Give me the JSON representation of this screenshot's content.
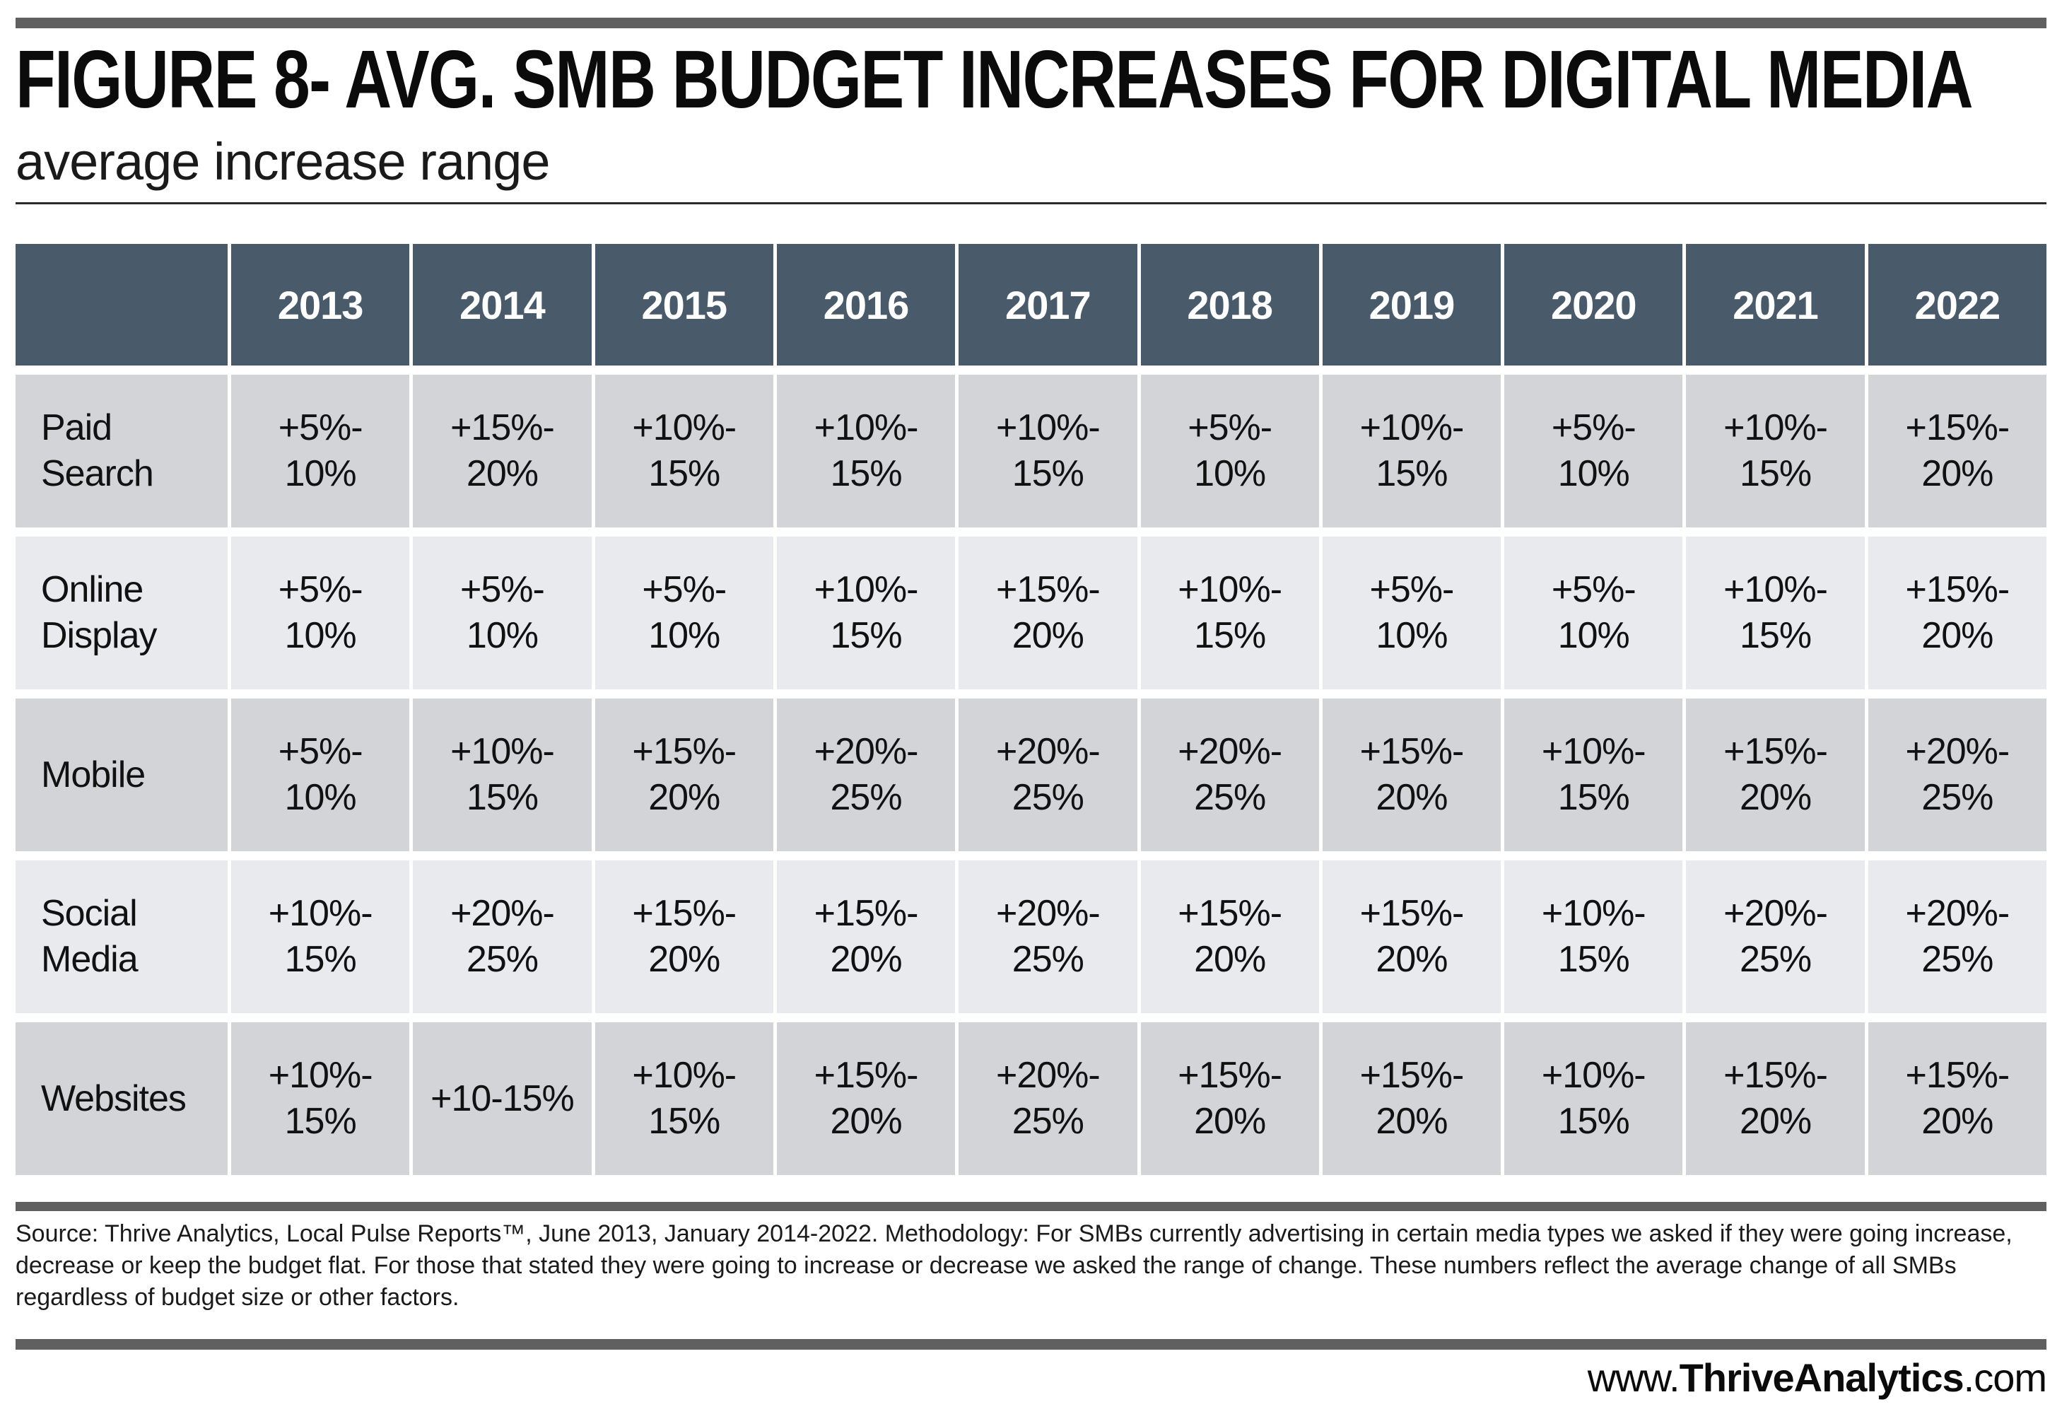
{
  "figure": {
    "title": "FIGURE 8- AVG. SMB BUDGET INCREASES FOR DIGITAL MEDIA",
    "subtitle": "average increase range"
  },
  "chart_data": {
    "type": "table",
    "title": "FIGURE 8- AVG. SMB BUDGET INCREASES FOR DIGITAL MEDIA",
    "subtitle": "average increase range",
    "categories": [
      "2013",
      "2014",
      "2015",
      "2016",
      "2017",
      "2018",
      "2019",
      "2020",
      "2021",
      "2022"
    ],
    "series": [
      {
        "name": "Paid Search",
        "values": [
          "+5%-10%",
          "+15%-20%",
          "+10%-15%",
          "+10%-15%",
          "+10%-15%",
          "+5%-10%",
          "+10%-15%",
          "+5%-10%",
          "+10%-15%",
          "+15%-20%"
        ]
      },
      {
        "name": "Online Display",
        "values": [
          "+5%-10%",
          "+5%-10%",
          "+5%-10%",
          "+10%-15%",
          "+15%-20%",
          "+10%-15%",
          "+5%-10%",
          "+5%-10%",
          "+10%-15%",
          "+15%-20%"
        ]
      },
      {
        "name": "Mobile",
        "values": [
          "+5%-10%",
          "+10%-15%",
          "+15%-20%",
          "+20%-25%",
          "+20%-25%",
          "+20%-25%",
          "+15%-20%",
          "+10%-15%",
          "+15%-20%",
          "+20%-25%"
        ]
      },
      {
        "name": "Social Media",
        "values": [
          "+10%-15%",
          "+20%-25%",
          "+15%-20%",
          "+15%-20%",
          "+20%-25%",
          "+15%-20%",
          "+15%-20%",
          "+10%-15%",
          "+20%-25%",
          "+20%-25%"
        ]
      },
      {
        "name": "Websites",
        "values": [
          "+10%-15%",
          "+10-15%",
          "+10%-15%",
          "+15%-20%",
          "+20%-25%",
          "+15%-20%",
          "+15%-20%",
          "+10%-15%",
          "+15%-20%",
          "+15%-20%"
        ]
      }
    ],
    "legend_position": "none",
    "grid": "off"
  },
  "footer": {
    "source_text": "Source: Thrive Analytics, Local Pulse Reports™, June 2013, January 2014-2022. Methodology: For SMBs currently advertising in certain media types we asked if they were going increase, decrease or keep the budget flat. For those that stated they were going to increase or decrease we asked the range of change. These numbers reflect the average change of all SMBs regardless of budget size or other factors.",
    "website": {
      "prefix": "www.",
      "name": "ThriveAnalytics",
      "suffix": ".com"
    }
  },
  "colors": {
    "header_bg": "#495A6B",
    "row_dark": "#D2D4D8",
    "row_light": "#E9EAED",
    "bar_gray": "#606060",
    "text": "#111111"
  }
}
